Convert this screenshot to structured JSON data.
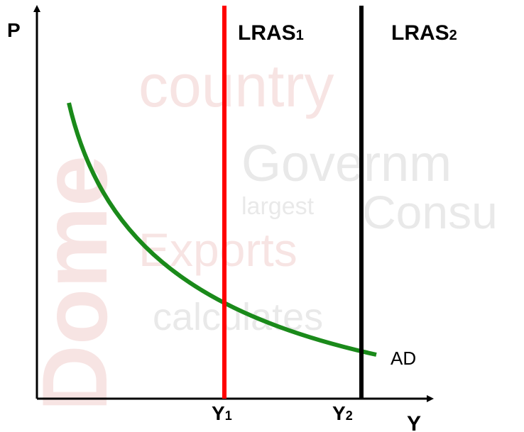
{
  "watermark": [
    "country",
    "Governm",
    "Consu",
    "Exports",
    "calculates",
    "largest",
    "Dome"
  ],
  "axes": {
    "y_label": "P",
    "x_label": "Y"
  },
  "curves": [
    {
      "label": "LRAS",
      "sub": "1"
    },
    {
      "label": "LRAS",
      "sub": "2"
    },
    {
      "label": "AD"
    }
  ],
  "ticks": [
    {
      "label": "Y",
      "sub": "1"
    },
    {
      "label": "Y",
      "sub": "2"
    }
  ]
}
